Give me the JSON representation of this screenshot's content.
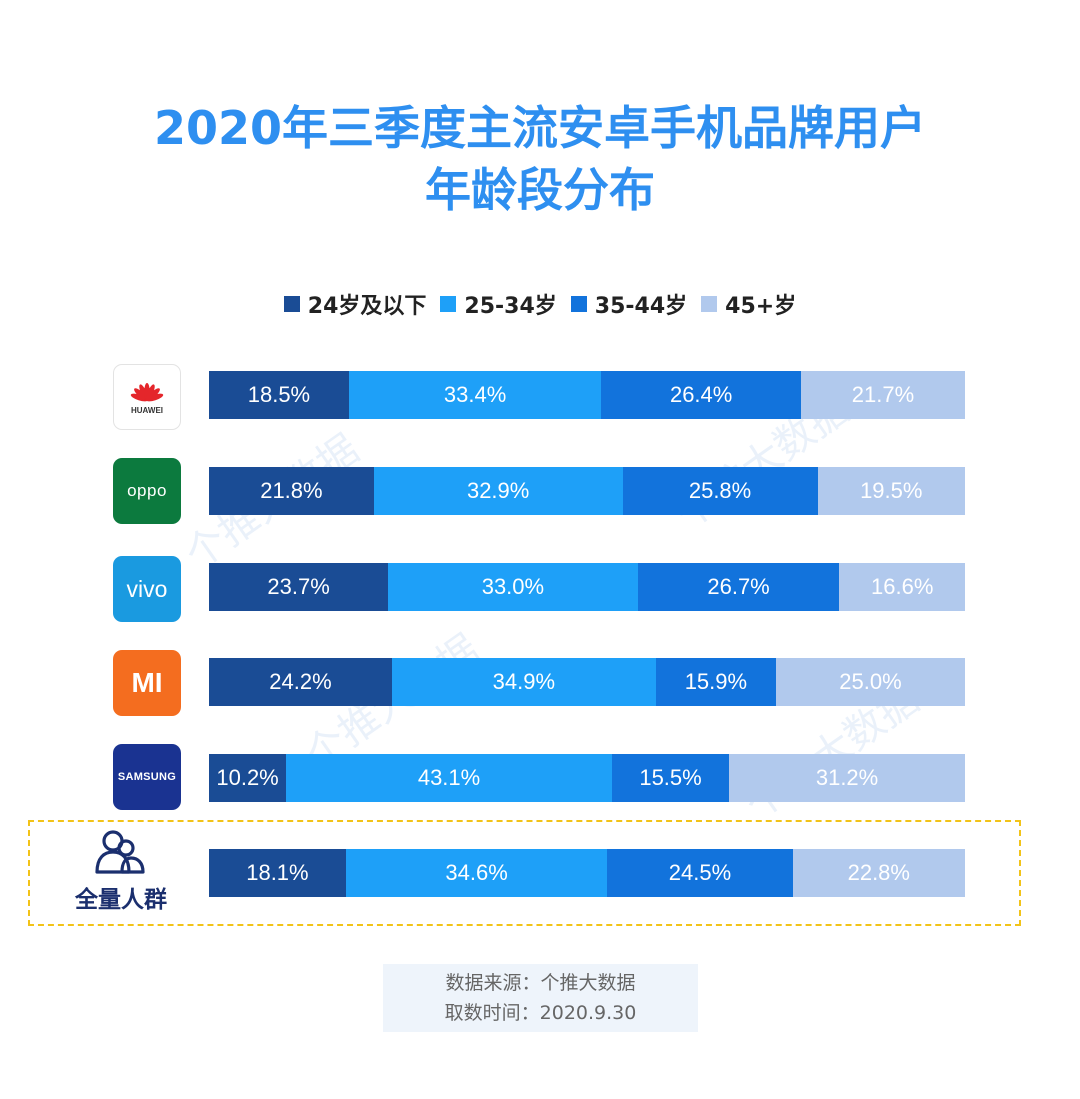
{
  "title_line1": "2020年三季度主流安卓手机品牌用户",
  "title_line2": "年龄段分布",
  "colors": {
    "title": "#2e8ff0",
    "seg_24_and_under": "#1a4c95",
    "seg_25_34": "#1ea0f8",
    "seg_35_44": "#1273dc",
    "seg_45_plus": "#b1c9ed",
    "highlight_border": "#f2c318"
  },
  "brands": [
    {
      "logo_text": "HUAWEI",
      "icon": "huawei-logo"
    },
    {
      "logo_text": "oppo",
      "icon": "oppo-logo"
    },
    {
      "logo_text": "vivo",
      "icon": "vivo-logo"
    },
    {
      "logo_text": "mi",
      "icon": "xiaomi-logo"
    },
    {
      "logo_text": "SAMSUNG",
      "icon": "samsung-logo"
    }
  ],
  "all_users_label": "全量人群",
  "all_users_icon": "people-group-icon",
  "chart_data": {
    "type": "bar",
    "stacked": true,
    "orientation": "horizontal",
    "categories": [
      "HUAWEI",
      "OPPO",
      "vivo",
      "MI",
      "SAMSUNG",
      "全量人群"
    ],
    "series": [
      {
        "name": "24岁及以下",
        "values": [
          18.5,
          21.8,
          23.7,
          24.2,
          10.2,
          18.1
        ],
        "labels": [
          "18.5%",
          "21.8%",
          "23.7%",
          "24.2%",
          "10.2%",
          "18.1%"
        ]
      },
      {
        "name": "25-34岁",
        "values": [
          33.4,
          32.9,
          33.0,
          34.9,
          43.1,
          34.6
        ],
        "labels": [
          "33.4%",
          "32.9%",
          "33.0%",
          "34.9%",
          "43.1%",
          "34.6%"
        ]
      },
      {
        "name": "35-44岁",
        "values": [
          26.4,
          25.8,
          26.7,
          15.9,
          15.5,
          24.5
        ],
        "labels": [
          "26.4%",
          "25.8%",
          "26.7%",
          "15.9%",
          "15.5%",
          "24.5%"
        ]
      },
      {
        "name": "45+岁",
        "values": [
          21.7,
          19.5,
          16.6,
          25.0,
          31.2,
          22.8
        ],
        "labels": [
          "21.7%",
          "19.5%",
          "16.6%",
          "25.0%",
          "31.2%",
          "22.8%"
        ]
      }
    ],
    "legend_position": "top",
    "grid": false
  },
  "source_line1": "数据来源：个推大数据",
  "source_line2": "取数时间：2020.9.30",
  "watermark": "个推大数据"
}
